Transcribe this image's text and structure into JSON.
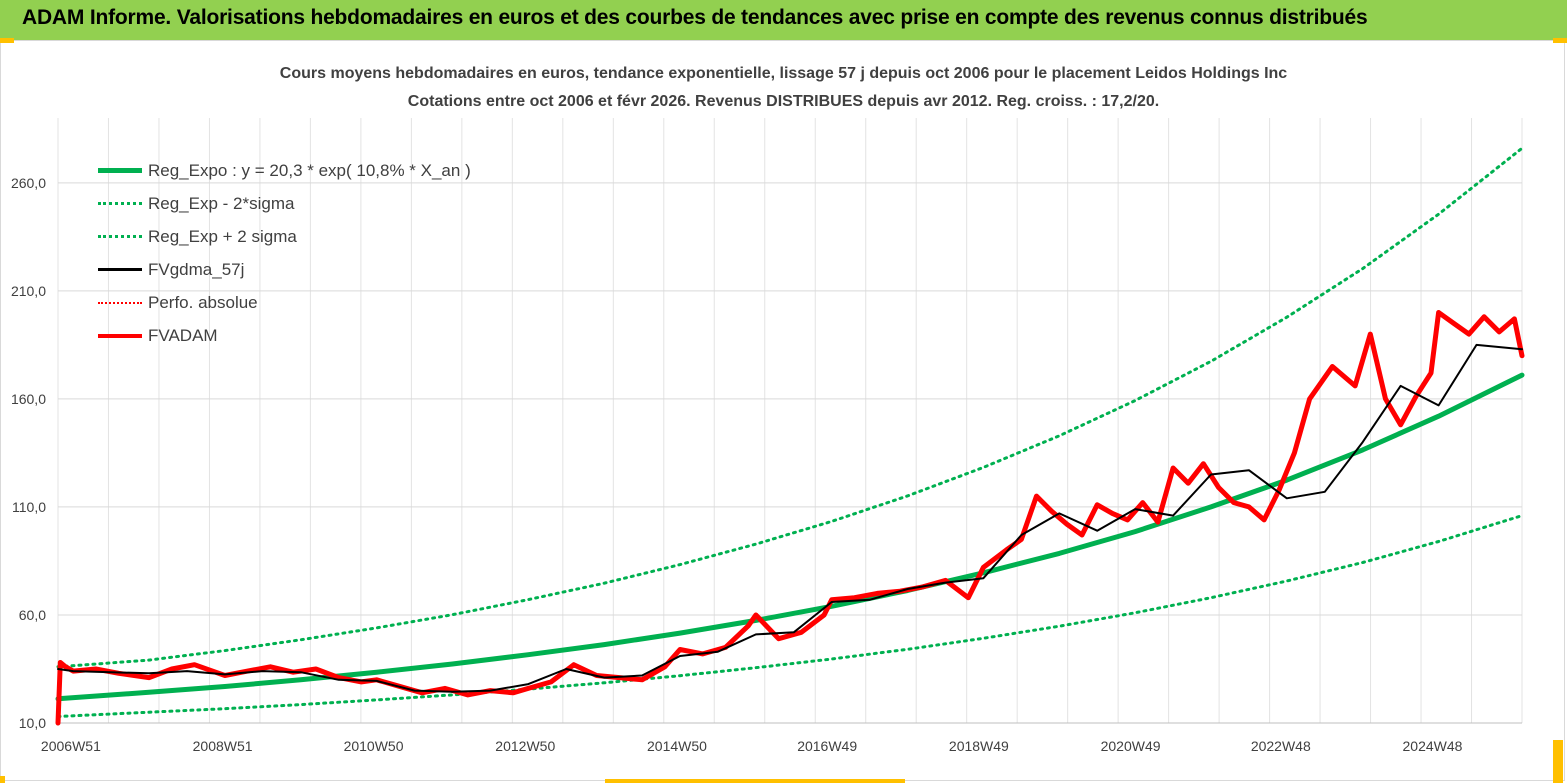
{
  "banner": {
    "title": "ADAM Informe. Valorisations hebdomadaires en euros et des courbes de tendances avec prise en compte des revenus connus distribués",
    "color": "#92d050"
  },
  "chart_data": {
    "type": "line",
    "title": "Cours moyens hebdomadaires en euros, tendance exponentielle, lissage 57 j depuis oct 2006 pour le placement Leidos Holdings Inc",
    "subtitle": "Cotations entre oct 2006 et févr 2026. Revenus DISTRIBUES depuis avr 2012. Reg. croiss. : 17,2/20.",
    "xlabel": "",
    "ylabel": "",
    "ylim": [
      10,
      290
    ],
    "y_ticks": [
      "10,0",
      "60,0",
      "110,0",
      "160,0",
      "210,0",
      "260,0"
    ],
    "y_tick_values": [
      10,
      60,
      110,
      160,
      210,
      260
    ],
    "x_range": [
      2006.8,
      2026.1
    ],
    "x_ticks": [
      "2006W51",
      "2008W51",
      "2010W50",
      "2012W50",
      "2014W50",
      "2016W49",
      "2018W49",
      "2020W49",
      "2022W48",
      "2024W48"
    ],
    "x_tick_values": [
      2006.97,
      2008.97,
      2010.96,
      2012.96,
      2014.96,
      2016.94,
      2018.94,
      2020.94,
      2022.92,
      2024.92
    ],
    "grid": true,
    "legend_position": "top-left",
    "series": [
      {
        "name": "Reg_Expo : y = 20,3 * exp( 10,8% *  X_an )",
        "color": "#00b050",
        "style": "solid-thick",
        "x": [
          2006.8,
          2008,
          2009,
          2010,
          2011,
          2012,
          2013,
          2014,
          2015,
          2016,
          2017,
          2018,
          2019,
          2020,
          2021,
          2022,
          2023,
          2024,
          2025,
          2026.1
        ],
        "values": [
          21.2,
          24.2,
          26.9,
          30.0,
          33.5,
          37.3,
          41.6,
          46.3,
          51.6,
          57.5,
          64.0,
          71.3,
          79.5,
          88.5,
          98.6,
          110.0,
          122.4,
          136.4,
          152.0,
          171.0
        ]
      },
      {
        "name": "Reg_Exp - 2*sigma",
        "color": "#00b050",
        "style": "dotted",
        "x": [
          2006.8,
          2008,
          2009,
          2010,
          2011,
          2012,
          2013,
          2014,
          2015,
          2016,
          2017,
          2018,
          2019,
          2020,
          2021,
          2022,
          2023,
          2024,
          2025,
          2026.1
        ],
        "values": [
          13.0,
          15.0,
          16.6,
          18.5,
          20.7,
          23.0,
          25.7,
          28.6,
          31.9,
          35.6,
          39.6,
          44.1,
          49.2,
          54.8,
          61.0,
          68.0,
          75.7,
          84.3,
          94.0,
          106.0
        ]
      },
      {
        "name": "Reg_Exp + 2 sigma",
        "color": "#00b050",
        "style": "dotted",
        "x": [
          2006.8,
          2008,
          2009,
          2010,
          2011,
          2012,
          2013,
          2014,
          2015,
          2016,
          2017,
          2018,
          2019,
          2020,
          2021,
          2022,
          2023,
          2024,
          2025,
          2026.1
        ],
        "values": [
          36.0,
          39.1,
          43.5,
          48.5,
          54.0,
          60.1,
          67.1,
          74.7,
          83.3,
          92.8,
          103.3,
          115.1,
          128.3,
          142.9,
          159.2,
          177.4,
          197.8,
          220.3,
          245.5,
          276.0
        ]
      },
      {
        "name": "FVgdma_57j",
        "color": "#000000",
        "style": "solid",
        "x": [
          2006.8,
          2007,
          2007.5,
          2008,
          2008.5,
          2009,
          2009.5,
          2010,
          2010.5,
          2011,
          2011.5,
          2012,
          2012.5,
          2013,
          2013.5,
          2014,
          2014.5,
          2015,
          2015.5,
          2016,
          2016.5,
          2017,
          2017.5,
          2018,
          2018.5,
          2019,
          2019.5,
          2020,
          2020.5,
          2021,
          2021.5,
          2022,
          2022.5,
          2023,
          2023.5,
          2024,
          2024.5,
          2025,
          2025.5,
          2026.1
        ],
        "values": [
          35.0,
          34.0,
          33.5,
          33.0,
          34.0,
          32.5,
          34.0,
          33.5,
          30.0,
          29.5,
          25.0,
          24.5,
          25.0,
          28.0,
          35.0,
          31.0,
          32.0,
          41.0,
          43.0,
          51.0,
          52.0,
          66.0,
          67.0,
          72.0,
          75.0,
          77.0,
          97.0,
          107.0,
          99.0,
          109.0,
          106.0,
          125.0,
          127.0,
          114.0,
          117.0,
          140.0,
          166.0,
          157.0,
          185.0,
          183.0
        ]
      },
      {
        "name": "Perfo. absolue",
        "color": "#ff0000",
        "style": "dotted-thin",
        "x": [],
        "values": []
      },
      {
        "name": "FVADAM",
        "color": "#ff0000",
        "style": "solid-thick",
        "x": [
          2006.8,
          2006.83,
          2006.9,
          2007,
          2007.3,
          2007.6,
          2008,
          2008.3,
          2008.6,
          2009,
          2009.3,
          2009.6,
          2009.9,
          2010.2,
          2010.5,
          2010.8,
          2011,
          2011.3,
          2011.6,
          2011.9,
          2012.2,
          2012.5,
          2012.8,
          2013,
          2013.3,
          2013.6,
          2013.9,
          2014.2,
          2014.5,
          2014.8,
          2015,
          2015.3,
          2015.6,
          2015.9,
          2016,
          2016.3,
          2016.6,
          2016.9,
          2017,
          2017.3,
          2017.6,
          2017.9,
          2018.2,
          2018.5,
          2018.8,
          2019,
          2019.3,
          2019.5,
          2019.7,
          2019.9,
          2020.1,
          2020.3,
          2020.5,
          2020.7,
          2020.9,
          2021.1,
          2021.3,
          2021.5,
          2021.7,
          2021.9,
          2022.1,
          2022.3,
          2022.5,
          2022.7,
          2022.9,
          2023.1,
          2023.3,
          2023.6,
          2023.9,
          2024.1,
          2024.3,
          2024.5,
          2024.7,
          2024.9,
          2025,
          2025.2,
          2025.4,
          2025.6,
          2025.8,
          2026.0,
          2026.1
        ],
        "values": [
          10.0,
          38.0,
          36.0,
          34.0,
          35.0,
          33.0,
          31.0,
          35.0,
          37.0,
          32.0,
          34.0,
          36.0,
          33.5,
          35.0,
          31.0,
          29.0,
          30.0,
          27.0,
          24.0,
          26.0,
          23.0,
          25.0,
          24.0,
          26.0,
          29.0,
          37.0,
          32.0,
          31.0,
          30.0,
          36.0,
          44.0,
          42.0,
          45.0,
          55.0,
          60.0,
          49.0,
          52.0,
          60.0,
          67.0,
          68.0,
          70.0,
          71.0,
          73.0,
          76.0,
          68.0,
          82.0,
          90.0,
          95.0,
          115.0,
          108.0,
          102.0,
          97.0,
          111.0,
          107.0,
          104.0,
          112.0,
          103.0,
          128.0,
          121.0,
          130.0,
          119.0,
          112.0,
          110.0,
          104.0,
          118.0,
          135.0,
          160.0,
          175.0,
          166.0,
          190.0,
          160.0,
          148.0,
          161.0,
          172.0,
          200.0,
          195.0,
          190.0,
          198.0,
          191.0,
          197.0,
          180.0
        ]
      }
    ]
  }
}
